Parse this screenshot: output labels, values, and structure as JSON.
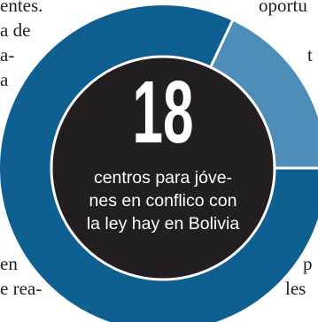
{
  "article": {
    "fragments": [
      {
        "text": "entes.",
        "cls": "frag-tl1"
      },
      {
        "text": "a de",
        "cls": "frag-tl2"
      },
      {
        "text": "a-",
        "cls": "frag-tl3"
      },
      {
        "text": "a",
        "cls": "frag-tl4"
      },
      {
        "text": "oportu",
        "cls": "frag-tr1"
      },
      {
        "text": "t",
        "cls": "frag-tr2"
      },
      {
        "text": "en",
        "cls": "frag-bl1"
      },
      {
        "text": "e rea-",
        "cls": "frag-bl2"
      },
      {
        "text": "p",
        "cls": "frag-br1"
      },
      {
        "text": "les",
        "cls": "frag-br2"
      }
    ]
  },
  "infographic": {
    "number": "18",
    "caption_lines": [
      "centros para jóve-",
      "nes en conflico con",
      "la ley hay en Bolivia"
    ]
  },
  "colors": {
    "ring_main": "#0f5f91",
    "ring_light": "#4e8db8",
    "center": "#231f20",
    "text": "#ffffff"
  },
  "chart_data": {
    "type": "pie",
    "values": [
      0.82,
      0.18
    ]
  }
}
